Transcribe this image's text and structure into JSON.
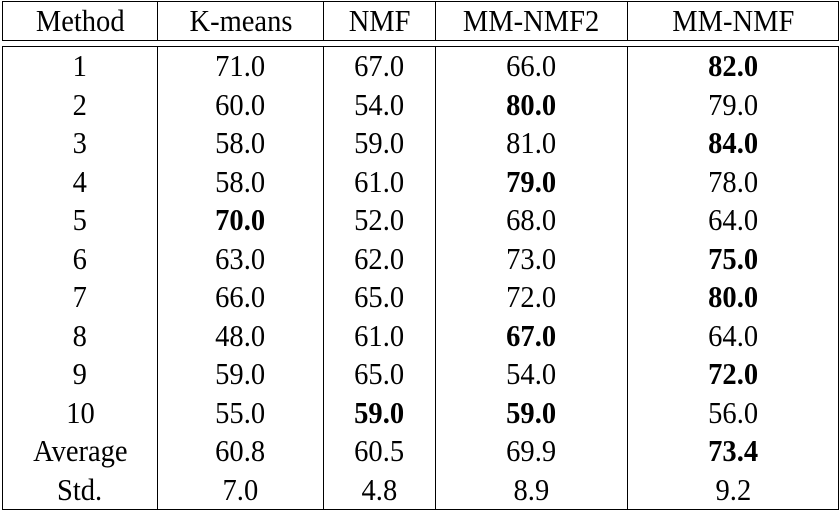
{
  "table": {
    "headers": [
      "Method",
      "K-means",
      "NMF",
      "MM-NMF2",
      "MM-NMF"
    ],
    "rows": [
      {
        "label": "1",
        "values": [
          "71.0",
          "67.0",
          "66.0",
          "82.0"
        ],
        "bold": [
          false,
          false,
          false,
          true
        ]
      },
      {
        "label": "2",
        "values": [
          "60.0",
          "54.0",
          "80.0",
          "79.0"
        ],
        "bold": [
          false,
          false,
          true,
          false
        ]
      },
      {
        "label": "3",
        "values": [
          "58.0",
          "59.0",
          "81.0",
          "84.0"
        ],
        "bold": [
          false,
          false,
          false,
          true
        ]
      },
      {
        "label": "4",
        "values": [
          "58.0",
          "61.0",
          "79.0",
          "78.0"
        ],
        "bold": [
          false,
          false,
          true,
          false
        ]
      },
      {
        "label": "5",
        "values": [
          "70.0",
          "52.0",
          "68.0",
          "64.0"
        ],
        "bold": [
          true,
          false,
          false,
          false
        ]
      },
      {
        "label": "6",
        "values": [
          "63.0",
          "62.0",
          "73.0",
          "75.0"
        ],
        "bold": [
          false,
          false,
          false,
          true
        ]
      },
      {
        "label": "7",
        "values": [
          "66.0",
          "65.0",
          "72.0",
          "80.0"
        ],
        "bold": [
          false,
          false,
          false,
          true
        ]
      },
      {
        "label": "8",
        "values": [
          "48.0",
          "61.0",
          "67.0",
          "64.0"
        ],
        "bold": [
          false,
          false,
          true,
          false
        ]
      },
      {
        "label": "9",
        "values": [
          "59.0",
          "65.0",
          "54.0",
          "72.0"
        ],
        "bold": [
          false,
          false,
          false,
          true
        ]
      },
      {
        "label": "10",
        "values": [
          "55.0",
          "59.0",
          "59.0",
          "56.0"
        ],
        "bold": [
          false,
          true,
          true,
          false
        ]
      },
      {
        "label": "Average",
        "values": [
          "60.8",
          "60.5",
          "69.9",
          "73.4"
        ],
        "bold": [
          false,
          false,
          false,
          true
        ]
      },
      {
        "label": "Std.",
        "values": [
          "7.0",
          "4.8",
          "8.9",
          "9.2"
        ],
        "bold": [
          false,
          false,
          false,
          false
        ]
      }
    ]
  }
}
